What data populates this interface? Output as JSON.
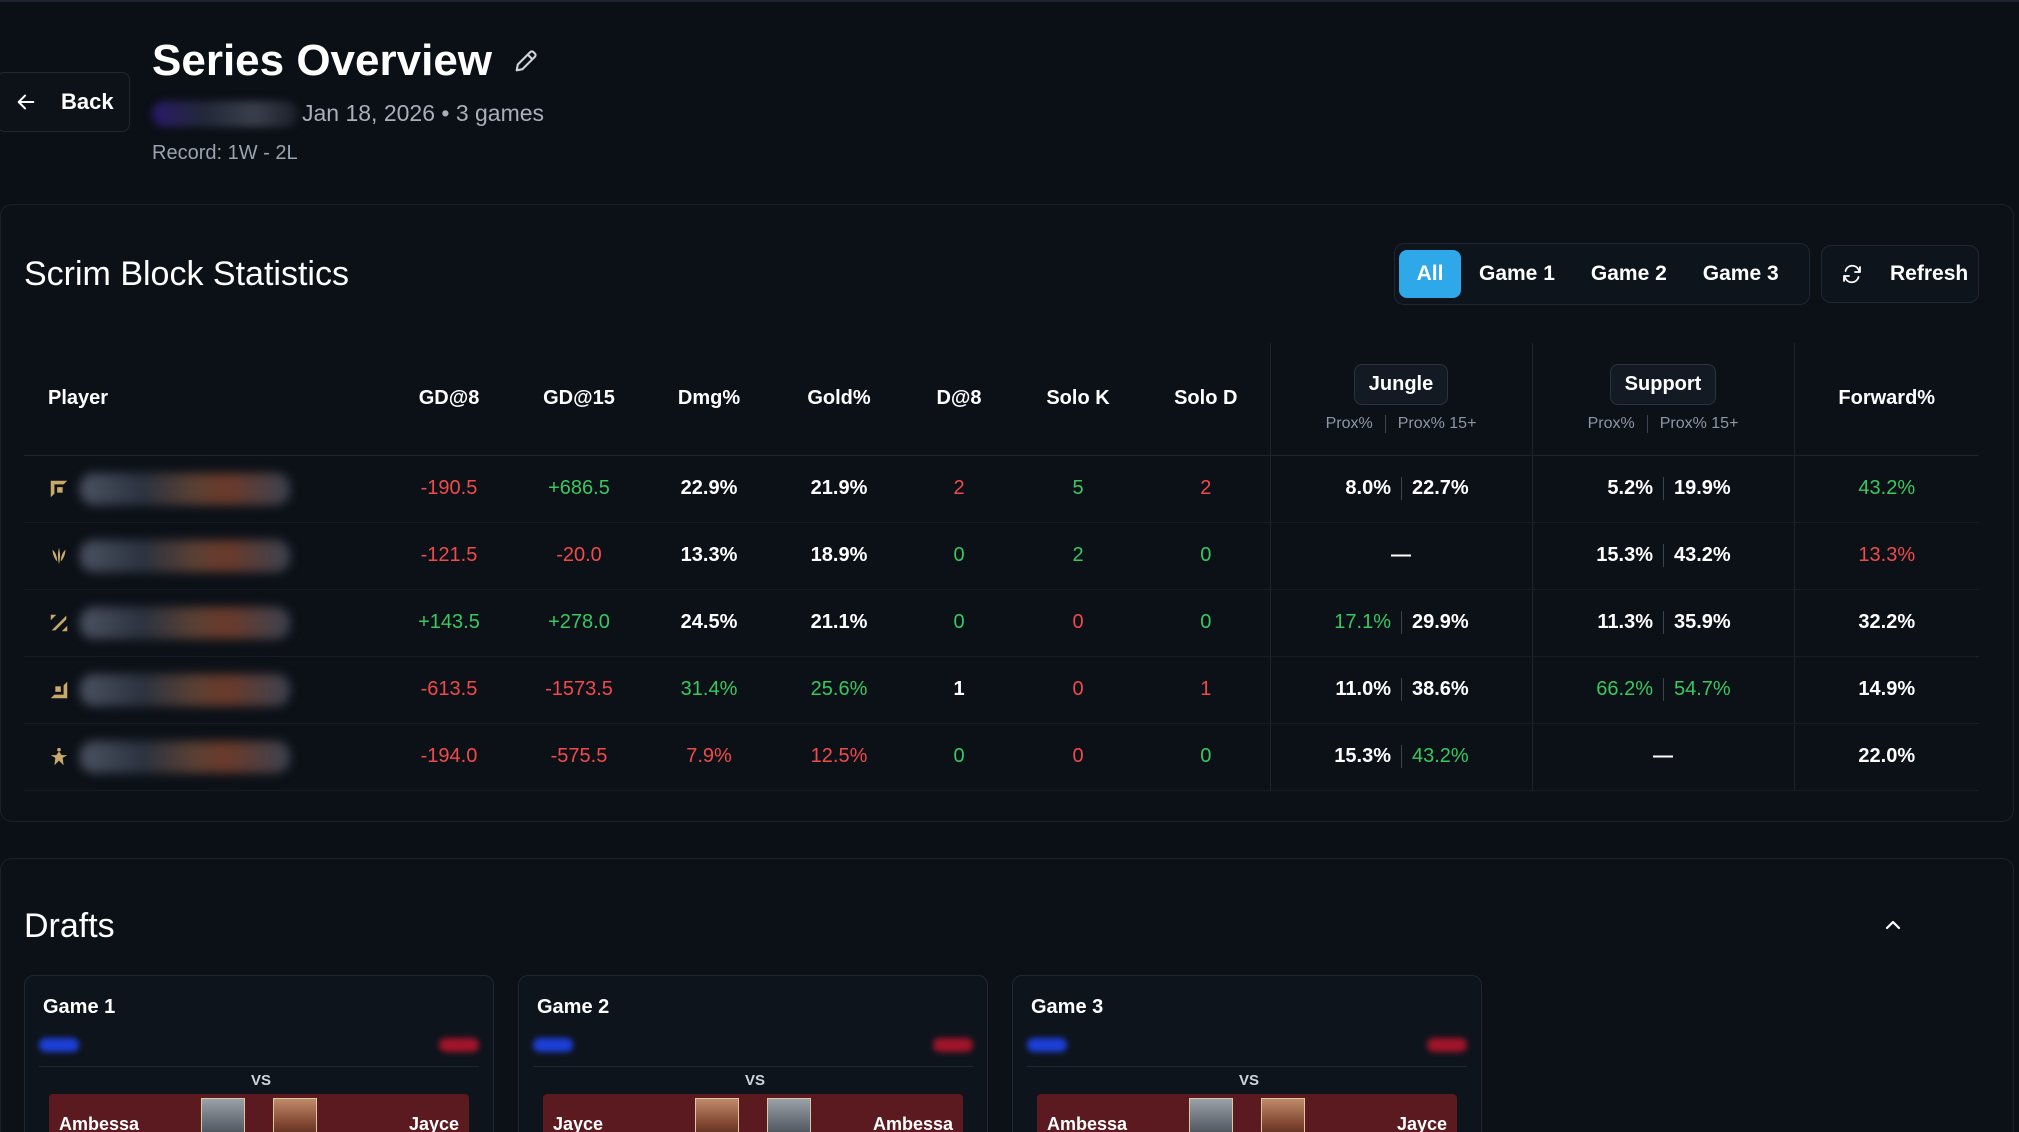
{
  "header": {
    "back_label": "Back",
    "title": "Series Overview",
    "subtitle": "Jan 18, 2026 • 3 games",
    "record": "Record: 1W - 2L"
  },
  "stats": {
    "title": "Scrim Block Statistics",
    "filters": [
      "All",
      "Game 1",
      "Game 2",
      "Game 3"
    ],
    "active_filter": "All",
    "refresh_label": "Refresh",
    "columns": {
      "player": "Player",
      "gd8": "GD@8",
      "gd15": "GD@15",
      "dmg": "Dmg%",
      "gold": "Gold%",
      "d8": "D@8",
      "solo_k": "Solo K",
      "solo_d": "Solo D",
      "jungle": "Jungle",
      "support": "Support",
      "prox": "Prox%",
      "prox15": "Prox% 15+",
      "forward": "Forward%"
    },
    "rows": [
      {
        "role_icon": "top-role-icon",
        "gd8": "-190.5",
        "gd15": "+686.5",
        "dmg": "22.9%",
        "gold": "21.9%",
        "d8": "2",
        "solo_k": "5",
        "solo_d": "2",
        "jg_prox": "8.0%",
        "jg_prox15": "22.7%",
        "sup_prox": "5.2%",
        "sup_prox15": "19.9%",
        "forward": "43.2%"
      },
      {
        "role_icon": "jungle-role-icon",
        "gd8": "-121.5",
        "gd15": "-20.0",
        "dmg": "13.3%",
        "gold": "18.9%",
        "d8": "0",
        "solo_k": "2",
        "solo_d": "0",
        "jg_prox": "—",
        "jg_prox15": "",
        "sup_prox": "15.3%",
        "sup_prox15": "43.2%",
        "forward": "13.3%"
      },
      {
        "role_icon": "mid-role-icon",
        "gd8": "+143.5",
        "gd15": "+278.0",
        "dmg": "24.5%",
        "gold": "21.1%",
        "d8": "0",
        "solo_k": "0",
        "solo_d": "0",
        "jg_prox": "17.1%",
        "jg_prox15": "29.9%",
        "sup_prox": "11.3%",
        "sup_prox15": "35.9%",
        "forward": "32.2%"
      },
      {
        "role_icon": "bot-role-icon",
        "gd8": "-613.5",
        "gd15": "-1573.5",
        "dmg": "31.4%",
        "gold": "25.6%",
        "d8": "1",
        "solo_k": "0",
        "solo_d": "1",
        "jg_prox": "11.0%",
        "jg_prox15": "38.6%",
        "sup_prox": "66.2%",
        "sup_prox15": "54.7%",
        "forward": "14.9%"
      },
      {
        "role_icon": "support-role-icon",
        "gd8": "-194.0",
        "gd15": "-575.5",
        "dmg": "7.9%",
        "gold": "12.5%",
        "d8": "0",
        "solo_k": "0",
        "solo_d": "0",
        "jg_prox": "15.3%",
        "jg_prox15": "43.2%",
        "sup_prox": "—",
        "sup_prox15": "",
        "forward": "22.0%"
      }
    ]
  },
  "drafts": {
    "title": "Drafts",
    "vs_label": "VS",
    "games": [
      {
        "title": "Game 1",
        "left_pick": "Ambessa",
        "right_pick": "Jayce"
      },
      {
        "title": "Game 2",
        "left_pick": "Jayce",
        "right_pick": "Ambessa"
      },
      {
        "title": "Game 3",
        "left_pick": "Ambessa",
        "right_pick": "Jayce"
      }
    ]
  },
  "colors": {
    "background": "#0b0f16",
    "accent": "#2ea8e8",
    "positive": "#38c860",
    "negative": "#f04a4a"
  }
}
